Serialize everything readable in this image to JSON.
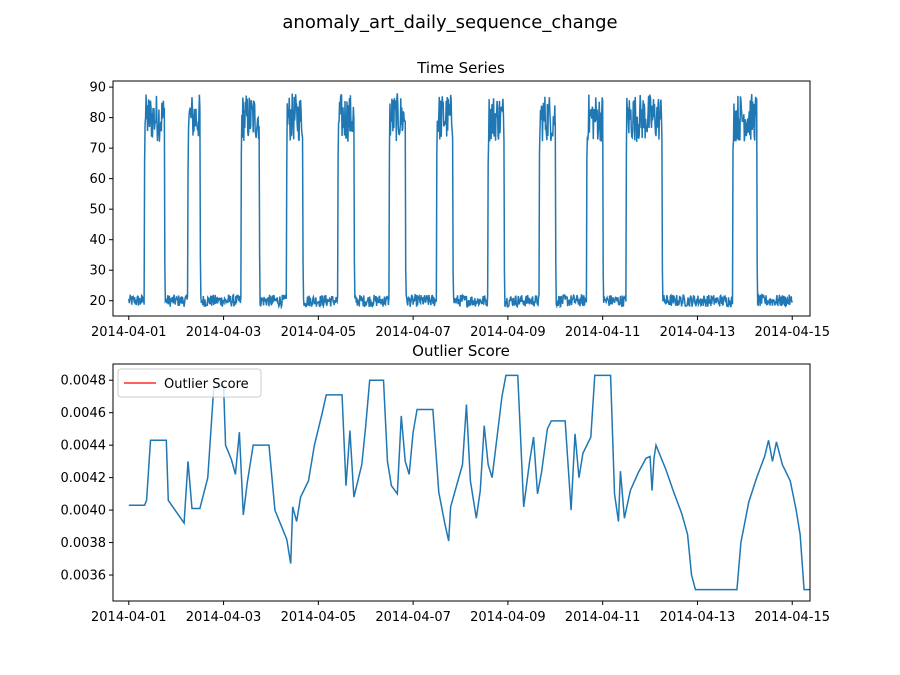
{
  "figure": {
    "title": "anomaly_art_daily_sequence_change",
    "series_color": "#1f77b4",
    "legend_line_color": "#ff0000"
  },
  "chart_data": [
    {
      "type": "line",
      "title": "Time Series",
      "xlabel": "",
      "ylabel": "",
      "xlim": [
        "2014-03-31T16:00",
        "2014-04-15T09:00"
      ],
      "ylim": [
        15,
        92
      ],
      "grid": false,
      "x_ticks": [
        "2014-04-01",
        "2014-04-03",
        "2014-04-05",
        "2014-04-07",
        "2014-04-09",
        "2014-04-11",
        "2014-04-13",
        "2014-04-15"
      ],
      "y_ticks": [
        "20",
        "30",
        "40",
        "50",
        "60",
        "70",
        "80",
        "90"
      ],
      "low_level": [
        18,
        22
      ],
      "high_level": [
        72,
        88
      ],
      "high_periods": [
        {
          "start": "2014-04-01T08:00",
          "end": "2014-04-01T18:00"
        },
        {
          "start": "2014-04-02T06:00",
          "end": "2014-04-02T12:00"
        },
        {
          "start": "2014-04-03T09:00",
          "end": "2014-04-03T18:00"
        },
        {
          "start": "2014-04-04T08:00",
          "end": "2014-04-04T16:00"
        },
        {
          "start": "2014-04-05T10:00",
          "end": "2014-04-05T18:00"
        },
        {
          "start": "2014-04-06T12:00",
          "end": "2014-04-06T20:00"
        },
        {
          "start": "2014-04-07T12:00",
          "end": "2014-04-07T20:00"
        },
        {
          "start": "2014-04-08T14:00",
          "end": "2014-04-08T22:00"
        },
        {
          "start": "2014-04-09T16:00",
          "end": "2014-04-10T00:00"
        },
        {
          "start": "2014-04-10T16:00",
          "end": "2014-04-11T00:00"
        },
        {
          "start": "2014-04-11T12:00",
          "end": "2014-04-12T06:00"
        },
        {
          "start": "2014-04-13T18:00",
          "end": "2014-04-14T06:00"
        }
      ],
      "series": [
        {
          "values_note_free": true
        }
      ]
    },
    {
      "type": "line",
      "title": "Outlier Score",
      "xlabel": "",
      "ylabel": "",
      "xlim": [
        "2014-03-31T16:00",
        "2014-04-15T09:00"
      ],
      "ylim": [
        0.00344,
        0.0049
      ],
      "grid": false,
      "legend": {
        "position": "top-left",
        "label": "Outlier Score"
      },
      "x_ticks": [
        "2014-04-01",
        "2014-04-03",
        "2014-04-05",
        "2014-04-07",
        "2014-04-09",
        "2014-04-11",
        "2014-04-13",
        "2014-04-15"
      ],
      "y_ticks": [
        "0.0036",
        "0.0038",
        "0.0040",
        "0.0042",
        "0.0044",
        "0.0046",
        "0.0048"
      ],
      "points": [
        [
          "2014-04-01T00:00",
          0.00403
        ],
        [
          "2014-04-01T08:00",
          0.00403
        ],
        [
          "2014-04-01T09:00",
          0.00406
        ],
        [
          "2014-04-01T11:00",
          0.00443
        ],
        [
          "2014-04-01T19:00",
          0.00443
        ],
        [
          "2014-04-01T20:00",
          0.00406
        ],
        [
          "2014-04-02T00:00",
          0.00399
        ],
        [
          "2014-04-02T04:00",
          0.00392
        ],
        [
          "2014-04-02T06:00",
          0.0043
        ],
        [
          "2014-04-02T08:00",
          0.00401
        ],
        [
          "2014-04-02T12:00",
          0.00401
        ],
        [
          "2014-04-02T16:00",
          0.0042
        ],
        [
          "2014-04-02T19:00",
          0.00475
        ],
        [
          "2014-04-03T00:00",
          0.00477
        ],
        [
          "2014-04-03T01:00",
          0.0044
        ],
        [
          "2014-04-03T04:00",
          0.00431
        ],
        [
          "2014-04-03T06:00",
          0.00422
        ],
        [
          "2014-04-03T08:00",
          0.00448
        ],
        [
          "2014-04-03T10:00",
          0.00397
        ],
        [
          "2014-04-03T12:00",
          0.00417
        ],
        [
          "2014-04-03T15:00",
          0.0044
        ],
        [
          "2014-04-03T23:00",
          0.0044
        ],
        [
          "2014-04-04T02:00",
          0.004
        ],
        [
          "2014-04-04T05:00",
          0.00391
        ],
        [
          "2014-04-04T08:00",
          0.00382
        ],
        [
          "2014-04-04T10:00",
          0.00367
        ],
        [
          "2014-04-04T11:00",
          0.00402
        ],
        [
          "2014-04-04T13:00",
          0.00393
        ],
        [
          "2014-04-04T15:00",
          0.00408
        ],
        [
          "2014-04-04T19:00",
          0.00418
        ],
        [
          "2014-04-04T22:00",
          0.0044
        ],
        [
          "2014-04-05T02:00",
          0.0046
        ],
        [
          "2014-04-05T04:00",
          0.00471
        ],
        [
          "2014-04-05T12:00",
          0.00471
        ],
        [
          "2014-04-05T14:00",
          0.00415
        ],
        [
          "2014-04-05T16:00",
          0.00449
        ],
        [
          "2014-04-05T18:00",
          0.00408
        ],
        [
          "2014-04-05T22:00",
          0.00428
        ],
        [
          "2014-04-06T00:00",
          0.00452
        ],
        [
          "2014-04-06T02:00",
          0.0048
        ],
        [
          "2014-04-06T09:00",
          0.0048
        ],
        [
          "2014-04-06T11:00",
          0.0043
        ],
        [
          "2014-04-06T13:00",
          0.00415
        ],
        [
          "2014-04-06T16:00",
          0.0041
        ],
        [
          "2014-04-06T18:00",
          0.00458
        ],
        [
          "2014-04-06T20:00",
          0.0043
        ],
        [
          "2014-04-06T22:00",
          0.00422
        ],
        [
          "2014-04-07T00:00",
          0.00448
        ],
        [
          "2014-04-07T02:00",
          0.00462
        ],
        [
          "2014-04-07T10:00",
          0.00462
        ],
        [
          "2014-04-07T13:00",
          0.00411
        ],
        [
          "2014-04-07T16:00",
          0.00392
        ],
        [
          "2014-04-07T18:00",
          0.00381
        ],
        [
          "2014-04-07T19:00",
          0.00402
        ],
        [
          "2014-04-07T22:00",
          0.00415
        ],
        [
          "2014-04-08T01:00",
          0.00428
        ],
        [
          "2014-04-08T03:00",
          0.00465
        ],
        [
          "2014-04-08T05:00",
          0.00418
        ],
        [
          "2014-04-08T08:00",
          0.00395
        ],
        [
          "2014-04-08T10:00",
          0.00412
        ],
        [
          "2014-04-08T12:00",
          0.00452
        ],
        [
          "2014-04-08T14:00",
          0.00428
        ],
        [
          "2014-04-08T16:00",
          0.0042
        ],
        [
          "2014-04-08T18:00",
          0.0044
        ],
        [
          "2014-04-08T21:00",
          0.0047
        ],
        [
          "2014-04-08T23:00",
          0.00483
        ],
        [
          "2014-04-09T05:00",
          0.00483
        ],
        [
          "2014-04-09T08:00",
          0.00402
        ],
        [
          "2014-04-09T11:00",
          0.0043
        ],
        [
          "2014-04-09T13:00",
          0.00445
        ],
        [
          "2014-04-09T15:00",
          0.0041
        ],
        [
          "2014-04-09T17:00",
          0.00423
        ],
        [
          "2014-04-09T20:00",
          0.0045
        ],
        [
          "2014-04-09T22:00",
          0.00455
        ],
        [
          "2014-04-10T05:00",
          0.00455
        ],
        [
          "2014-04-10T08:00",
          0.004
        ],
        [
          "2014-04-10T10:00",
          0.00447
        ],
        [
          "2014-04-10T12:00",
          0.0042
        ],
        [
          "2014-04-10T14:00",
          0.00435
        ],
        [
          "2014-04-10T18:00",
          0.00445
        ],
        [
          "2014-04-10T20:00",
          0.00483
        ],
        [
          "2014-04-11T04:00",
          0.00483
        ],
        [
          "2014-04-11T06:00",
          0.0041
        ],
        [
          "2014-04-11T08:00",
          0.00393
        ],
        [
          "2014-04-11T09:00",
          0.00424
        ],
        [
          "2014-04-11T11:00",
          0.00395
        ],
        [
          "2014-04-11T14:00",
          0.00412
        ],
        [
          "2014-04-11T18:00",
          0.00423
        ],
        [
          "2014-04-11T22:00",
          0.00432
        ],
        [
          "2014-04-12T00:00",
          0.00433
        ],
        [
          "2014-04-12T01:00",
          0.00412
        ],
        [
          "2014-04-12T02:00",
          0.00432
        ],
        [
          "2014-04-12T03:00",
          0.0044
        ],
        [
          "2014-04-12T08:00",
          0.00425
        ],
        [
          "2014-04-12T12:00",
          0.00411
        ],
        [
          "2014-04-12T16:00",
          0.00398
        ],
        [
          "2014-04-12T19:00",
          0.00385
        ],
        [
          "2014-04-12T21:00",
          0.0036
        ],
        [
          "2014-04-12T23:00",
          0.00351
        ],
        [
          "2014-04-13T20:00",
          0.00351
        ],
        [
          "2014-04-13T22:00",
          0.0038
        ],
        [
          "2014-04-14T02:00",
          0.00405
        ],
        [
          "2014-04-14T06:00",
          0.0042
        ],
        [
          "2014-04-14T10:00",
          0.00433
        ],
        [
          "2014-04-14T12:00",
          0.00443
        ],
        [
          "2014-04-14T14:00",
          0.0043
        ],
        [
          "2014-04-14T16:00",
          0.00442
        ],
        [
          "2014-04-14T19:00",
          0.00428
        ],
        [
          "2014-04-14T23:00",
          0.00418
        ],
        [
          "2014-04-15T02:00",
          0.004
        ],
        [
          "2014-04-15T04:00",
          0.00385
        ],
        [
          "2014-04-15T06:00",
          0.00351
        ],
        [
          "2014-04-15T09:00",
          0.00351
        ]
      ]
    }
  ]
}
